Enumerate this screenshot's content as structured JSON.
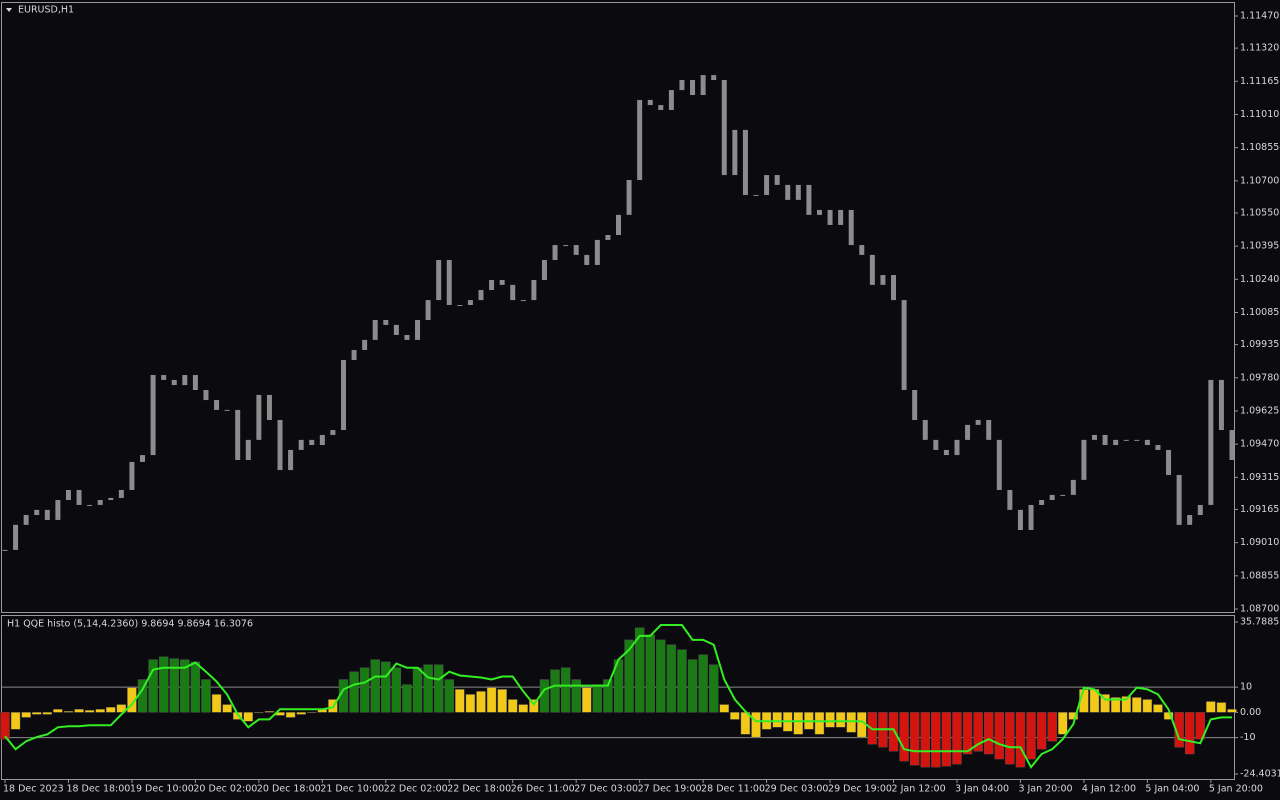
{
  "chart_data": [
    {
      "type": "candlestick",
      "title": "EURUSD,H1",
      "color": "#8c8c8c",
      "categories": [
        "18 Dec 2023",
        null,
        null,
        null,
        null,
        null,
        "18 Dec 18:00",
        null,
        null,
        null,
        null,
        null,
        "19 Dec 10:00",
        null,
        null,
        null,
        null,
        null,
        "20 Dec 02:00",
        null,
        null,
        null,
        null,
        null,
        "20 Dec 18:00",
        null,
        null,
        null,
        null,
        null,
        "21 Dec 10:00",
        null,
        null,
        null,
        null,
        null,
        "22 Dec 02:00",
        null,
        null,
        null,
        null,
        null,
        "22 Dec 18:00",
        null,
        null,
        null,
        null,
        null,
        "26 Dec 11:00",
        null,
        null,
        null,
        null,
        null,
        "27 Dec 03:00",
        null,
        null,
        null,
        null,
        null,
        "27 Dec 19:00",
        null,
        null,
        null,
        null,
        null,
        "28 Dec 11:00",
        null,
        null,
        null,
        null,
        null,
        "29 Dec 03:00",
        null,
        null,
        null,
        null,
        null,
        "29 Dec 19:00",
        null,
        null,
        null,
        null,
        null,
        "2 Jan 12:00",
        null,
        null,
        null,
        null,
        null,
        "3 Jan 04:00",
        null,
        null,
        null,
        null,
        null,
        "3 Jan 20:00",
        null,
        null,
        null,
        null,
        null,
        "4 Jan 12:00",
        null,
        null,
        null,
        null,
        null,
        "5 Jan 04:00",
        null,
        null,
        null,
        null,
        null,
        "5 Jan 20:00",
        null,
        null
      ],
      "values": [
        1.08976,
        1.09093,
        1.09139,
        1.09163,
        1.09116,
        1.09209,
        1.09256,
        1.09186,
        1.09186,
        1.09209,
        1.09219,
        1.09256,
        1.09387,
        1.09419,
        1.09793,
        1.0977,
        1.09746,
        1.09793,
        1.09723,
        1.09676,
        1.0963,
        1.0963,
        1.09396,
        1.0949,
        1.097,
        1.09583,
        1.09349,
        1.09443,
        1.0949,
        1.09466,
        1.09513,
        1.09536,
        1.09863,
        1.0991,
        1.09957,
        1.1005,
        1.10027,
        1.0998,
        1.09957,
        1.1005,
        1.10143,
        1.1033,
        1.1012,
        1.1012,
        1.10143,
        1.1019,
        1.10237,
        1.10214,
        1.10143,
        1.10143,
        1.10237,
        1.1033,
        1.104,
        1.104,
        1.10354,
        1.10307,
        1.10424,
        1.10447,
        1.10541,
        1.10704,
        1.11078,
        1.11054,
        1.11031,
        1.11124,
        1.11171,
        1.11101,
        1.11194,
        1.11171,
        1.10727,
        1.10938,
        1.10634,
        1.10634,
        1.10727,
        1.10681,
        1.10611,
        1.10681,
        1.10541,
        1.10564,
        1.10494,
        1.10564,
        1.104,
        1.10354,
        1.10214,
        1.1026,
        1.10143,
        1.09723,
        1.09583,
        1.0949,
        1.09443,
        1.09419,
        1.0949,
        1.0956,
        1.09583,
        1.0949,
        1.09256,
        1.09163,
        1.09069,
        1.09186,
        1.09209,
        1.09233,
        1.09233,
        1.09303,
        1.0949,
        1.09513,
        1.09466,
        1.0949,
        1.0949,
        1.0949,
        1.09466,
        1.09443,
        1.09326,
        1.09093,
        1.09139,
        1.09186,
        1.0977,
        1.09536,
        1.09396
      ],
      "ylim": [
        1.087,
        1.1147
      ],
      "yticks": [
        {
          "value": 1.1147,
          "label": "1.11470"
        },
        {
          "value": 1.1132,
          "label": "1.11320"
        },
        {
          "value": 1.11165,
          "label": "1.11165"
        },
        {
          "value": 1.1101,
          "label": "1.11010"
        },
        {
          "value": 1.10855,
          "label": "1.10855"
        },
        {
          "value": 1.107,
          "label": "1.10700"
        },
        {
          "value": 1.1055,
          "label": "1.10550"
        },
        {
          "value": 1.10395,
          "label": "1.10395"
        },
        {
          "value": 1.1024,
          "label": "1.10240"
        },
        {
          "value": 1.10085,
          "label": "1.10085"
        },
        {
          "value": 1.09935,
          "label": "1.09935"
        },
        {
          "value": 1.0978,
          "label": "1.09780"
        },
        {
          "value": 1.09625,
          "label": "1.09625"
        },
        {
          "value": 1.0947,
          "label": "1.09470"
        },
        {
          "value": 1.09315,
          "label": "1.09315"
        },
        {
          "value": 1.09165,
          "label": "1.09165"
        },
        {
          "value": 1.0901,
          "label": "1.09010"
        },
        {
          "value": 1.08855,
          "label": "1.08855"
        },
        {
          "value": 1.087,
          "label": "1.08700"
        }
      ]
    },
    {
      "type": "histogram",
      "title": "H1 QQE histo (5,14,4.2360) 9.8694 9.8694 16.3076",
      "values": [
        -10.6,
        -6.7,
        -2,
        -0.8,
        -0.8,
        1.2,
        0.4,
        1.2,
        0.8,
        1.2,
        2,
        3.1,
        9.8,
        13,
        20.9,
        22,
        21.3,
        20.9,
        20,
        13,
        7.1,
        3.1,
        -2.8,
        -3.5,
        0,
        0.4,
        -1.2,
        -2,
        -0.8,
        0,
        1.2,
        5.1,
        13,
        16.1,
        17.7,
        20.9,
        20,
        17.7,
        11,
        17.7,
        18.9,
        18.9,
        13,
        9.1,
        7.1,
        8.3,
        9.8,
        9.1,
        5.1,
        3.1,
        5.1,
        13,
        16.9,
        17.7,
        13,
        9.8,
        11,
        13,
        20.9,
        28.7,
        33.5,
        30.7,
        28.7,
        26.8,
        24.8,
        20.9,
        22.8,
        18.9,
        3.1,
        -2.8,
        -8.7,
        -9.8,
        -6.7,
        -5.9,
        -7.5,
        -8.7,
        -6.7,
        -8.7,
        -5.9,
        -5.9,
        -7.9,
        -9.8,
        -12.6,
        -13.8,
        -15.4,
        -19.3,
        -20.9,
        -21.7,
        -21.7,
        -21.3,
        -20.5,
        -16.5,
        -15.4,
        -16.5,
        -18.5,
        -20.5,
        -21.7,
        -18.5,
        -14.6,
        -11.4,
        -8.7,
        -2.8,
        9.1,
        9.1,
        7.1,
        5.9,
        6.3,
        5.9,
        5.1,
        3.1,
        -2.8,
        -13.8,
        -16.5,
        -10.6,
        4.3,
        3.9,
        1.2
      ],
      "line_values": [
        -9.4,
        -14.6,
        -11.4,
        -9.8,
        -8.7,
        -5.9,
        -5.5,
        -5.5,
        -5.1,
        -5.1,
        -5.1,
        -0.8,
        3.1,
        9.1,
        16.9,
        17.7,
        17.7,
        17.7,
        19.7,
        16.1,
        12.2,
        7.1,
        -0.8,
        -5.9,
        -2.8,
        -2.8,
        1.2,
        1.2,
        1.2,
        1.2,
        1.2,
        2,
        9.1,
        11,
        11.8,
        14.2,
        14.2,
        19.3,
        17.7,
        17.7,
        13.8,
        13,
        16.1,
        14.6,
        14.2,
        13.8,
        13,
        14.2,
        14.2,
        8.3,
        3.1,
        9.1,
        10.6,
        10.6,
        10.6,
        10.6,
        10.6,
        10.6,
        20.9,
        24.8,
        30.3,
        30.3,
        34.6,
        34.6,
        34.6,
        28.7,
        28.7,
        26.8,
        13,
        5.1,
        0.4,
        -3.5,
        -3.5,
        -3.5,
        -3.5,
        -3.5,
        -3.5,
        -3.5,
        -3.5,
        -3.5,
        -3.5,
        -3.5,
        -6.7,
        -6.7,
        -6.7,
        -14.6,
        -15.4,
        -15.4,
        -15.4,
        -15.4,
        -15.4,
        -15.4,
        -12.6,
        -10.6,
        -12.6,
        -13.8,
        -13.8,
        -21.7,
        -16.5,
        -14.6,
        -10.6,
        -4.7,
        9.8,
        9.1,
        5.1,
        5.1,
        5.1,
        9.8,
        9.1,
        7.1,
        1.2,
        -10.6,
        -11.4,
        -12.2,
        -2.8,
        -2,
        -2
      ],
      "line_color": "#33ee22",
      "colors": {
        "up": "#1a7a14",
        "mid": "#f2c919",
        "down": "#d4140f"
      },
      "levels": [
        10,
        -10
      ],
      "ylim": [
        -24.4031,
        35.7885
      ],
      "yticks": [
        35.7885,
        10,
        {
          "value": 0,
          "label": "0.00"
        },
        -10,
        -24.4031
      ]
    }
  ]
}
